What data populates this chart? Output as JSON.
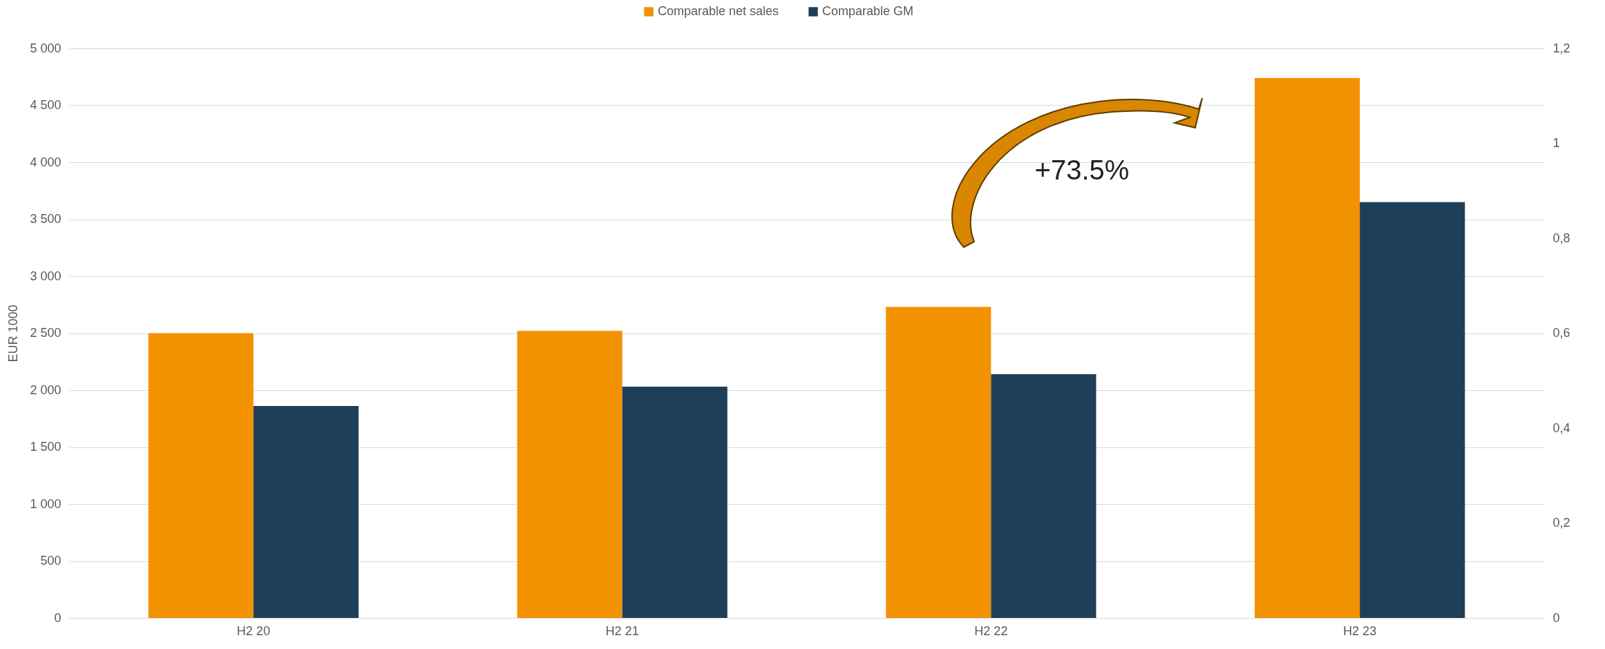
{
  "chart_data": {
    "type": "bar",
    "ylabel": "EUR 1000",
    "categories": [
      "H2 20",
      "H2 21",
      "H2 22",
      "H2 23"
    ],
    "series": [
      {
        "name": "Comparable net sales",
        "color": "#f39200",
        "values": [
          2500,
          2520,
          2730,
          4740
        ]
      },
      {
        "name": "Comparable GM",
        "color": "#1f3f58",
        "values": [
          1860,
          2030,
          2140,
          3650
        ]
      }
    ],
    "ylim": [
      0,
      5000
    ],
    "yticks": [
      0,
      500,
      {
        "value": 1000,
        "label": "1 000"
      },
      {
        "value": 1500,
        "label": "1 500"
      },
      {
        "value": 2000,
        "label": "2 000"
      },
      {
        "value": 2500,
        "label": "2 500"
      },
      {
        "value": 3000,
        "label": "3 000"
      },
      {
        "value": 3500,
        "label": "3 500"
      },
      {
        "value": 4000,
        "label": "4 000"
      },
      {
        "value": 4500,
        "label": "4 500"
      },
      {
        "value": 5000,
        "label": "5 000"
      }
    ],
    "y2lim": [
      0,
      1.2
    ],
    "y2ticks": [
      0,
      {
        "value": 0.2,
        "label": "0,2"
      },
      {
        "value": 0.4,
        "label": "0,4"
      },
      {
        "value": 0.6,
        "label": "0,6"
      },
      {
        "value": 0.8,
        "label": "0,8"
      },
      1,
      {
        "value": 1.2,
        "label": "1,2"
      }
    ],
    "annotations": [
      "+73.5%"
    ],
    "grid": "y",
    "legend": "top"
  }
}
